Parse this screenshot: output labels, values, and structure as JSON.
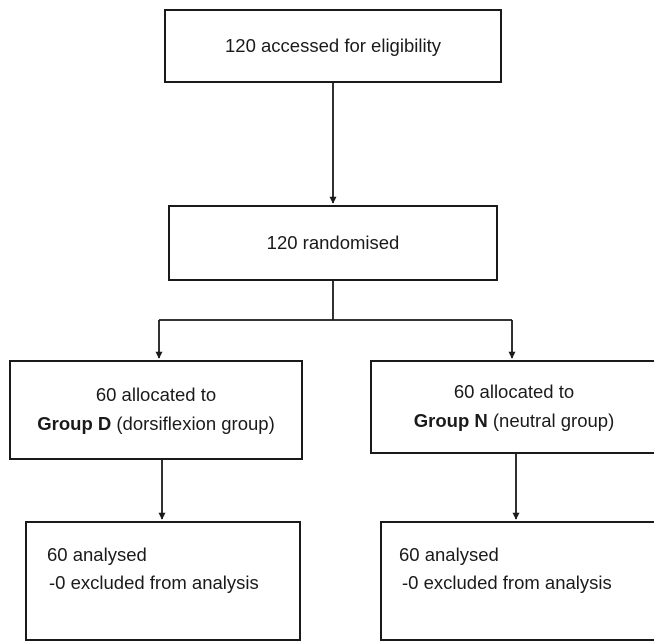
{
  "flowchart": {
    "eligibility": {
      "text": "120 accessed for eligibility"
    },
    "randomised": {
      "text": "120 randomised"
    },
    "group_d": {
      "allocated": "60 allocated to",
      "group_name": "Group D",
      "group_desc": " (dorsiflexion group)"
    },
    "group_n": {
      "allocated": "60 allocated to",
      "group_name": "Group N",
      "group_desc": " (neutral group)"
    },
    "analysis_d": {
      "analysed": "60 analysed",
      "excluded": "-0 excluded from analysis"
    },
    "analysis_n": {
      "analysed": "60 analysed",
      "excluded": "-0 excluded from analysis"
    }
  },
  "colors": {
    "stroke": "#1a1a1a",
    "background": "#ffffff"
  }
}
